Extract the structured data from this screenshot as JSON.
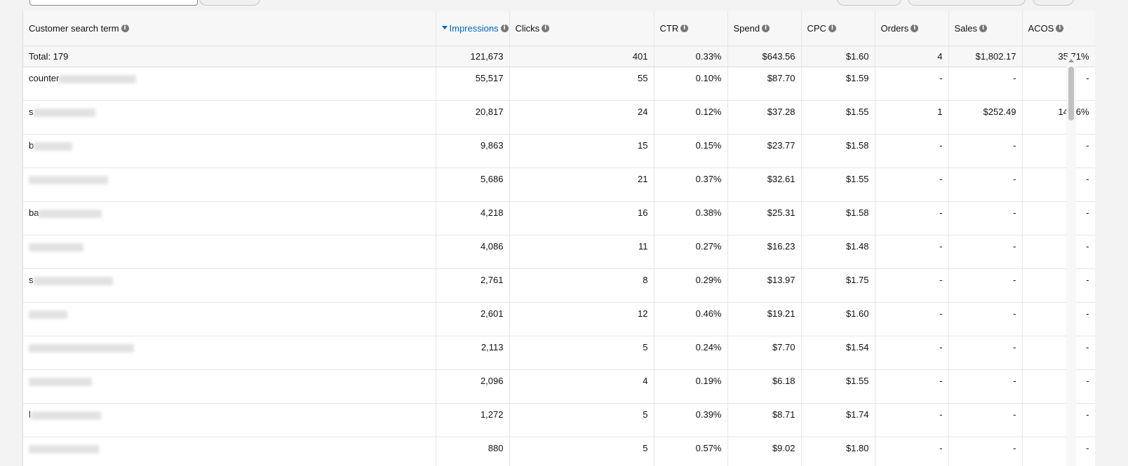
{
  "table": {
    "headers": [
      {
        "label": "Customer search term",
        "sorted": false
      },
      {
        "label": "Impressions",
        "sorted": true
      },
      {
        "label": "Clicks",
        "sorted": false
      },
      {
        "label": "CTR",
        "sorted": false
      },
      {
        "label": "Spend",
        "sorted": false
      },
      {
        "label": "CPC",
        "sorted": false
      },
      {
        "label": "Orders",
        "sorted": false
      },
      {
        "label": "Sales",
        "sorted": false
      },
      {
        "label": "ACOS",
        "sorted": false
      }
    ],
    "total": [
      "Total: 179",
      "121,673",
      "401",
      "0.33%",
      "$643.56",
      "$1.60",
      "4",
      "$1,802.17",
      "35.71%"
    ],
    "rows": [
      {
        "term": "counter",
        "impressions": "55,517",
        "clicks": "55",
        "ctr": "0.10%",
        "spend": "$87.70",
        "cpc": "$1.59",
        "orders": "-",
        "sales": "-",
        "acos": "-"
      },
      {
        "term": "s",
        "impressions": "20,817",
        "clicks": "24",
        "ctr": "0.12%",
        "spend": "$37.28",
        "cpc": "$1.55",
        "orders": "1",
        "sales": "$252.49",
        "acos": "14.76%"
      },
      {
        "term": "b",
        "impressions": "9,863",
        "clicks": "15",
        "ctr": "0.15%",
        "spend": "$23.77",
        "cpc": "$1.58",
        "orders": "-",
        "sales": "-",
        "acos": "-"
      },
      {
        "term": "",
        "impressions": "5,686",
        "clicks": "21",
        "ctr": "0.37%",
        "spend": "$32.61",
        "cpc": "$1.55",
        "orders": "-",
        "sales": "-",
        "acos": "-"
      },
      {
        "term": "ba",
        "impressions": "4,218",
        "clicks": "16",
        "ctr": "0.38%",
        "spend": "$25.31",
        "cpc": "$1.58",
        "orders": "-",
        "sales": "-",
        "acos": "-"
      },
      {
        "term": "",
        "impressions": "4,086",
        "clicks": "11",
        "ctr": "0.27%",
        "spend": "$16.23",
        "cpc": "$1.48",
        "orders": "-",
        "sales": "-",
        "acos": "-"
      },
      {
        "term": "s",
        "impressions": "2,761",
        "clicks": "8",
        "ctr": "0.29%",
        "spend": "$13.97",
        "cpc": "$1.75",
        "orders": "-",
        "sales": "-",
        "acos": "-"
      },
      {
        "term": "",
        "impressions": "2,601",
        "clicks": "12",
        "ctr": "0.46%",
        "spend": "$19.21",
        "cpc": "$1.60",
        "orders": "-",
        "sales": "-",
        "acos": "-"
      },
      {
        "term": "",
        "impressions": "2,113",
        "clicks": "5",
        "ctr": "0.24%",
        "spend": "$7.70",
        "cpc": "$1.54",
        "orders": "-",
        "sales": "-",
        "acos": "-"
      },
      {
        "term": "",
        "impressions": "2,096",
        "clicks": "4",
        "ctr": "0.19%",
        "spend": "$6.18",
        "cpc": "$1.55",
        "orders": "-",
        "sales": "-",
        "acos": "-"
      },
      {
        "term": "l",
        "impressions": "1,272",
        "clicks": "5",
        "ctr": "0.39%",
        "spend": "$8.71",
        "cpc": "$1.74",
        "orders": "-",
        "sales": "-",
        "acos": "-"
      },
      {
        "term": "",
        "impressions": "880",
        "clicks": "5",
        "ctr": "0.57%",
        "spend": "$9.02",
        "cpc": "$1.80",
        "orders": "-",
        "sales": "-",
        "acos": "-"
      }
    ]
  }
}
